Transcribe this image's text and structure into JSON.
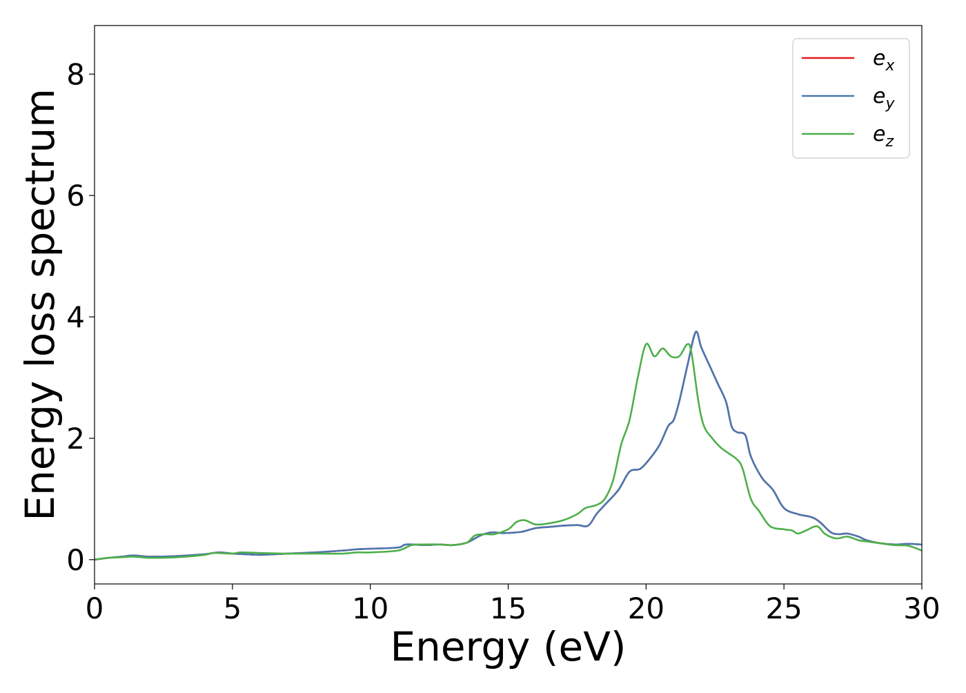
{
  "chart_data": {
    "type": "line",
    "xlabel": "Energy (eV)",
    "ylabel": "Energy loss spectrum",
    "xlim": [
      0,
      30
    ],
    "ylim": [
      -0.4,
      8.8
    ],
    "xticks": [
      0,
      5,
      10,
      15,
      20,
      25,
      30
    ],
    "yticks": [
      0,
      2,
      4,
      6,
      8
    ],
    "grid": false,
    "legend_position": "top-right",
    "series": [
      {
        "name": "e_x",
        "legend_base": "e",
        "legend_sub": "x",
        "color": "#e41a1c",
        "x": [
          0,
          0.5,
          1.0,
          1.4,
          2.0,
          3.0,
          4.0,
          4.5,
          5.0,
          5.5,
          6.0,
          7.0,
          8.0,
          9.0,
          9.5,
          10.0,
          11.0,
          11.3,
          12.0,
          12.5,
          13.0,
          13.5,
          14.0,
          14.4,
          14.7,
          15.0,
          15.5,
          16.0,
          16.5,
          17.0,
          17.5,
          17.9,
          18.2,
          18.5,
          19.0,
          19.4,
          19.8,
          20.2,
          20.5,
          20.8,
          21.0,
          21.2,
          21.5,
          21.8,
          22.0,
          22.3,
          22.6,
          22.9,
          23.1,
          23.3,
          23.6,
          23.8,
          24.2,
          24.6,
          25.0,
          25.5,
          26.0,
          26.3,
          26.7,
          27.0,
          27.3,
          27.7,
          28.0,
          28.5,
          29.0,
          29.5,
          30.0
        ],
        "y": [
          0.0,
          0.03,
          0.05,
          0.07,
          0.05,
          0.06,
          0.09,
          0.12,
          0.1,
          0.09,
          0.08,
          0.1,
          0.12,
          0.15,
          0.17,
          0.18,
          0.2,
          0.25,
          0.24,
          0.25,
          0.24,
          0.28,
          0.4,
          0.45,
          0.44,
          0.44,
          0.46,
          0.52,
          0.54,
          0.56,
          0.57,
          0.56,
          0.75,
          0.9,
          1.15,
          1.45,
          1.5,
          1.7,
          1.9,
          2.2,
          2.3,
          2.6,
          3.2,
          3.75,
          3.5,
          3.2,
          2.9,
          2.6,
          2.2,
          2.1,
          2.05,
          1.7,
          1.35,
          1.15,
          0.85,
          0.75,
          0.7,
          0.62,
          0.45,
          0.42,
          0.43,
          0.38,
          0.32,
          0.27,
          0.25,
          0.26,
          0.25
        ]
      },
      {
        "name": "e_y",
        "legend_base": "e",
        "legend_sub": "y",
        "color": "#4a78b0",
        "x": [
          0,
          0.5,
          1.0,
          1.4,
          2.0,
          3.0,
          4.0,
          4.5,
          5.0,
          5.5,
          6.0,
          7.0,
          8.0,
          9.0,
          9.5,
          10.0,
          11.0,
          11.3,
          12.0,
          12.5,
          13.0,
          13.5,
          14.0,
          14.4,
          14.7,
          15.0,
          15.5,
          16.0,
          16.5,
          17.0,
          17.5,
          17.9,
          18.2,
          18.5,
          19.0,
          19.4,
          19.8,
          20.2,
          20.5,
          20.8,
          21.0,
          21.2,
          21.5,
          21.8,
          22.0,
          22.3,
          22.6,
          22.9,
          23.1,
          23.3,
          23.6,
          23.8,
          24.2,
          24.6,
          25.0,
          25.5,
          26.0,
          26.3,
          26.7,
          27.0,
          27.3,
          27.7,
          28.0,
          28.5,
          29.0,
          29.5,
          30.0
        ],
        "y": [
          0.0,
          0.03,
          0.05,
          0.07,
          0.05,
          0.06,
          0.09,
          0.12,
          0.1,
          0.09,
          0.08,
          0.1,
          0.12,
          0.15,
          0.17,
          0.18,
          0.2,
          0.25,
          0.24,
          0.25,
          0.24,
          0.28,
          0.4,
          0.45,
          0.44,
          0.44,
          0.46,
          0.52,
          0.54,
          0.56,
          0.57,
          0.56,
          0.75,
          0.9,
          1.15,
          1.45,
          1.5,
          1.7,
          1.9,
          2.2,
          2.3,
          2.6,
          3.2,
          3.75,
          3.5,
          3.2,
          2.9,
          2.6,
          2.2,
          2.1,
          2.05,
          1.7,
          1.35,
          1.15,
          0.85,
          0.75,
          0.7,
          0.62,
          0.45,
          0.42,
          0.43,
          0.38,
          0.32,
          0.27,
          0.25,
          0.26,
          0.25
        ]
      },
      {
        "name": "e_z",
        "legend_base": "e",
        "legend_sub": "z",
        "color": "#4daf4a",
        "x": [
          0,
          0.5,
          1.0,
          1.4,
          2.0,
          3.0,
          4.0,
          4.3,
          5.0,
          5.3,
          6.0,
          7.0,
          8.0,
          9.0,
          9.5,
          10.0,
          11.0,
          11.5,
          12.0,
          12.5,
          13.0,
          13.5,
          13.8,
          14.2,
          14.5,
          15.0,
          15.3,
          15.6,
          16.0,
          16.5,
          17.0,
          17.5,
          17.8,
          18.2,
          18.5,
          18.8,
          19.1,
          19.4,
          19.7,
          20.0,
          20.3,
          20.6,
          20.9,
          21.2,
          21.5,
          21.65,
          21.9,
          22.1,
          22.4,
          22.7,
          23.0,
          23.3,
          23.5,
          23.8,
          24.1,
          24.5,
          25.0,
          25.3,
          25.5,
          25.8,
          26.2,
          26.5,
          26.9,
          27.3,
          27.7,
          28.0,
          28.5,
          29.0,
          29.5,
          30.0
        ],
        "y": [
          0.0,
          0.03,
          0.04,
          0.05,
          0.03,
          0.04,
          0.08,
          0.11,
          0.1,
          0.12,
          0.11,
          0.1,
          0.1,
          0.1,
          0.12,
          0.12,
          0.15,
          0.24,
          0.25,
          0.25,
          0.24,
          0.28,
          0.4,
          0.42,
          0.42,
          0.5,
          0.62,
          0.65,
          0.58,
          0.6,
          0.65,
          0.75,
          0.85,
          0.9,
          1.0,
          1.3,
          1.9,
          2.3,
          3.0,
          3.55,
          3.35,
          3.48,
          3.35,
          3.35,
          3.55,
          3.4,
          2.6,
          2.2,
          2.0,
          1.85,
          1.75,
          1.65,
          1.5,
          1.0,
          0.8,
          0.55,
          0.5,
          0.48,
          0.43,
          0.48,
          0.55,
          0.42,
          0.35,
          0.38,
          0.32,
          0.3,
          0.27,
          0.24,
          0.23,
          0.15
        ]
      }
    ]
  }
}
